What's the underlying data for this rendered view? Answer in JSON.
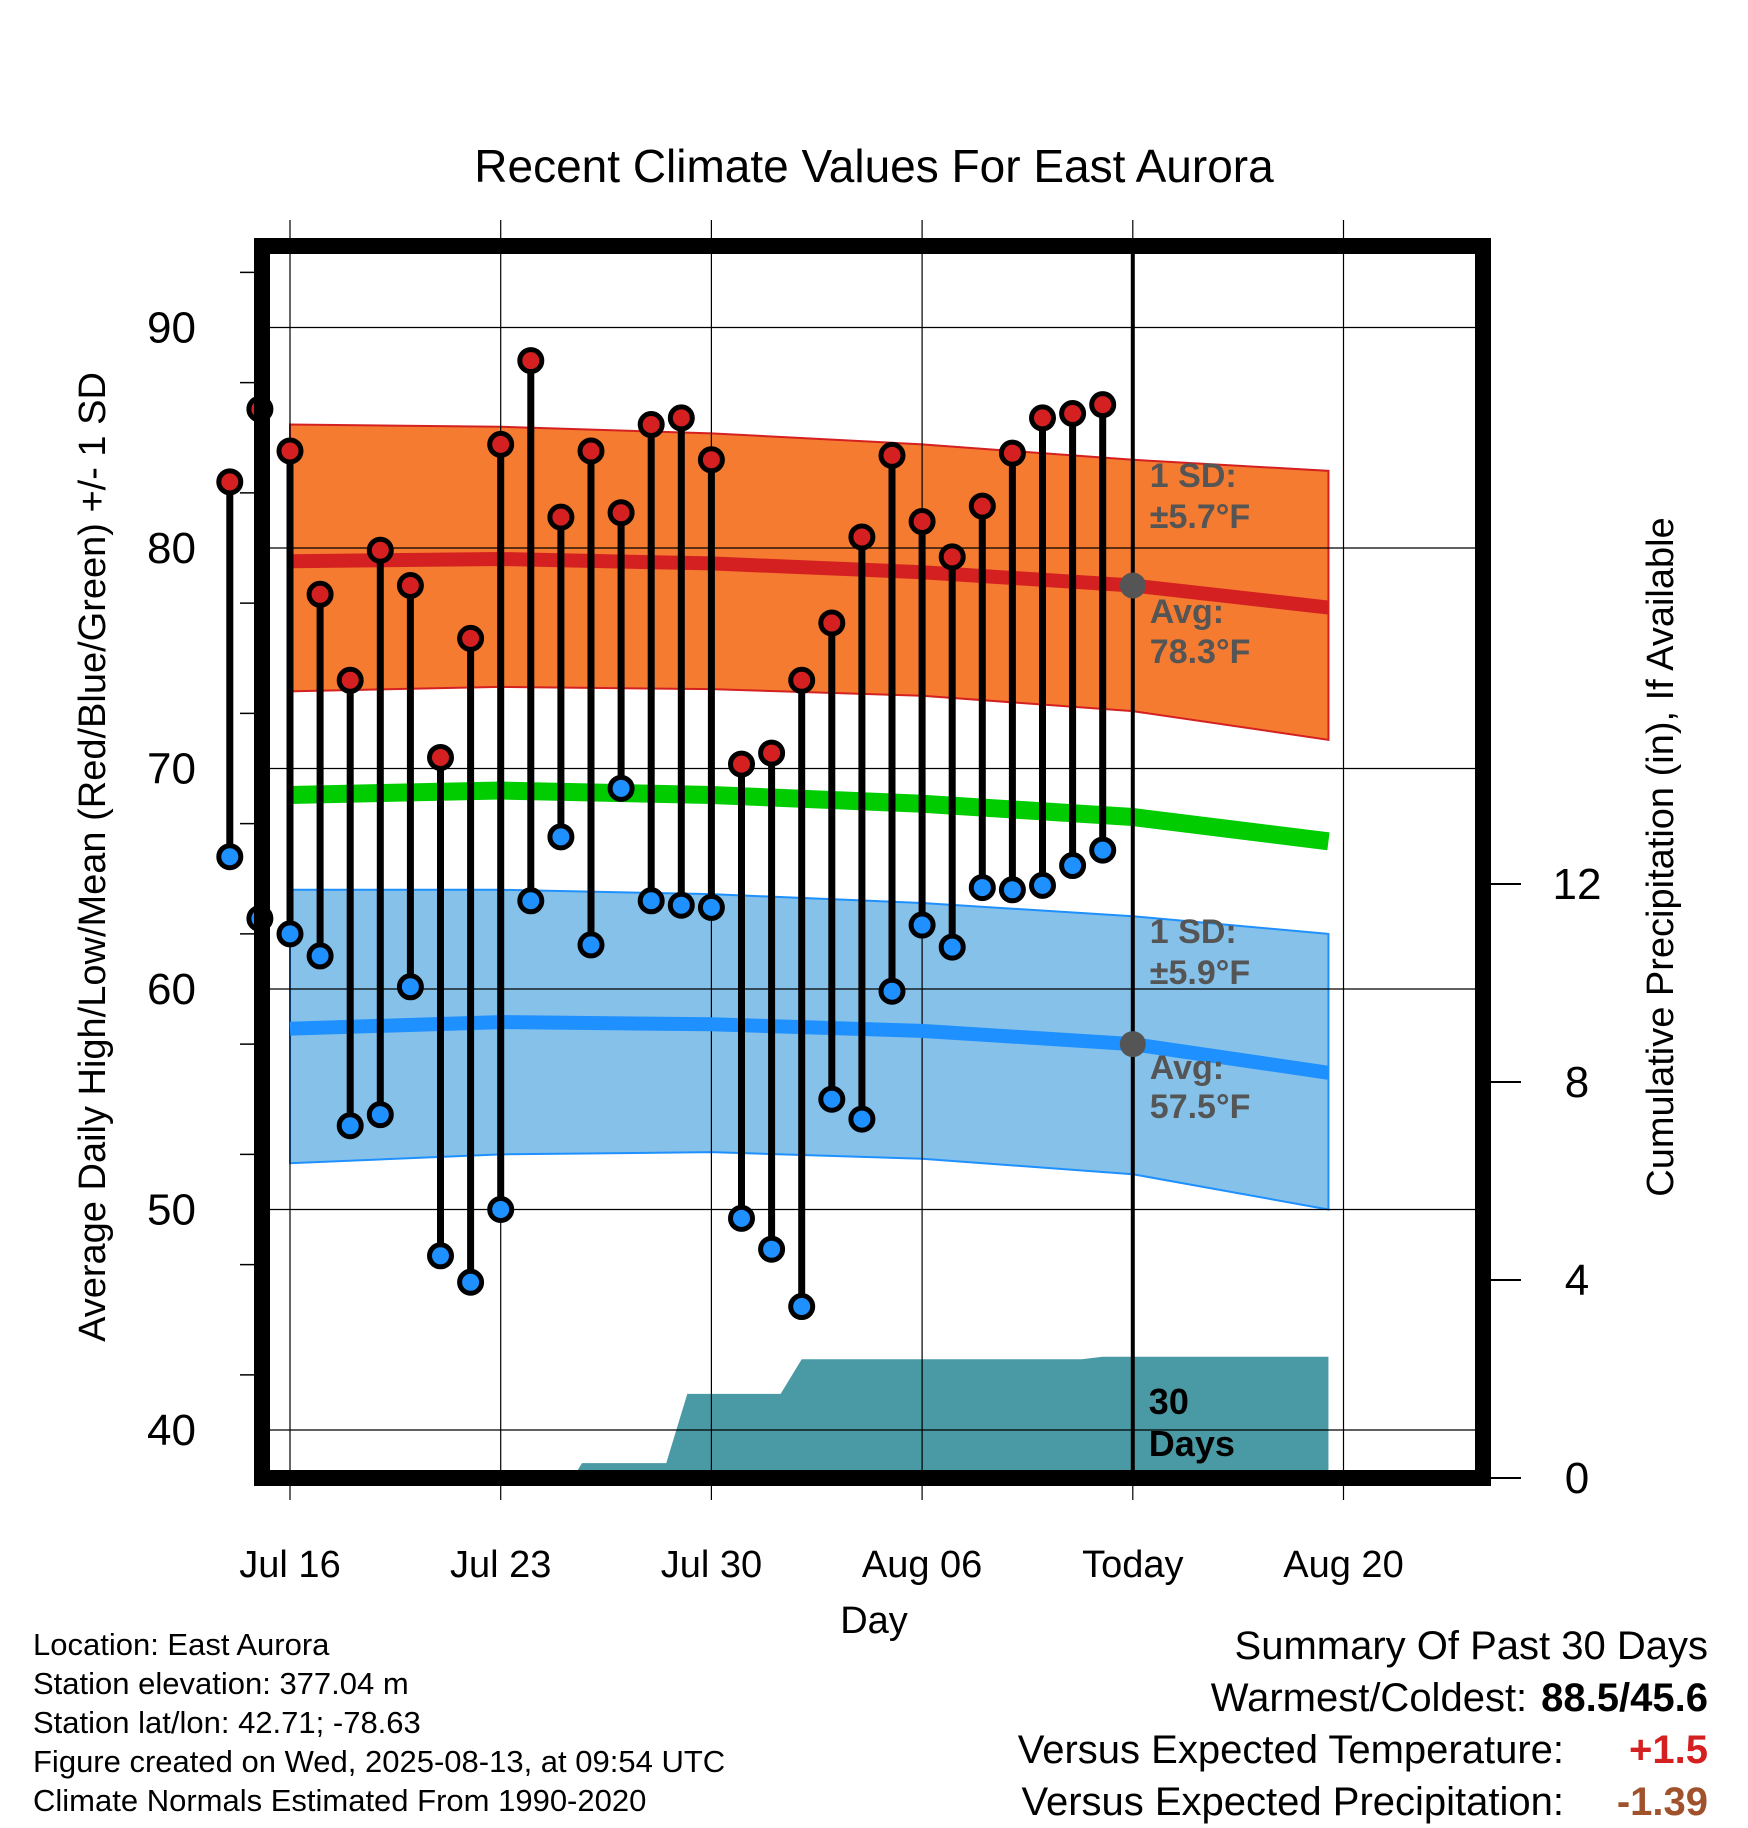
{
  "chart_data": {
    "type": "line",
    "title": "Recent Climate Values For East Aurora",
    "xlabel": "Day",
    "ylabel": "Average Daily High/Low/Mean (Red/Blue/Green) +/- 1 SD",
    "y2label": "Cumulative Precipitation (in), If Available",
    "ylim": [
      37.5,
      93
    ],
    "y_ticks": [
      40,
      50,
      60,
      70,
      80,
      90
    ],
    "y2lim": [
      0,
      18
    ],
    "y2_ticks": [
      0,
      4,
      8,
      12
    ],
    "x_ticks": [
      "Jul 16",
      "Jul 23",
      "Jul 30",
      "Aug 06",
      "Today",
      "Aug 20"
    ],
    "grid": true,
    "series": [
      {
        "name": "High",
        "color": "#d42020",
        "values": [
          83.0,
          86.3,
          84.4,
          77.9,
          74.0,
          79.9,
          78.3,
          70.5,
          75.9,
          84.7,
          88.5,
          81.4,
          84.4,
          81.6,
          85.6,
          85.9,
          84.0,
          70.2,
          70.7,
          74.0,
          76.6,
          80.5,
          84.2,
          81.2,
          79.6,
          81.9,
          84.3,
          85.9,
          86.1,
          86.5
        ]
      },
      {
        "name": "Low",
        "color": "#1e90ff",
        "values": [
          66.0,
          63.2,
          62.5,
          61.5,
          53.8,
          54.3,
          60.1,
          47.9,
          46.7,
          50.0,
          64.0,
          66.9,
          62.0,
          69.1,
          64.0,
          63.8,
          63.7,
          49.6,
          48.2,
          45.6,
          55.0,
          54.1,
          59.9,
          62.9,
          61.9,
          64.6,
          64.5,
          64.7,
          65.6,
          66.3
        ]
      },
      {
        "name": "Normal High",
        "color": "#d42020",
        "x": [
          0,
          7,
          14,
          21,
          28,
          34.5
        ],
        "values": [
          79.4,
          79.5,
          79.3,
          78.9,
          78.3,
          77.3
        ]
      },
      {
        "name": "Normal High +1 SD",
        "color": "#f47b30",
        "x": [
          0,
          7,
          14,
          21,
          28,
          34.5
        ],
        "values": [
          85.6,
          85.5,
          85.2,
          84.7,
          84.0,
          83.5
        ]
      },
      {
        "name": "Normal High -1 SD",
        "color": "#f47b30",
        "x": [
          0,
          7,
          14,
          21,
          28,
          34.5
        ],
        "values": [
          73.5,
          73.7,
          73.6,
          73.3,
          72.6,
          71.3
        ]
      },
      {
        "name": "Normal Mean",
        "color": "#00cc00",
        "x": [
          0,
          7,
          14,
          21,
          28,
          34.5
        ],
        "values": [
          68.8,
          69.0,
          68.8,
          68.4,
          67.8,
          66.7
        ]
      },
      {
        "name": "Normal Low",
        "color": "#1e90ff",
        "x": [
          0,
          7,
          14,
          21,
          28,
          34.5
        ],
        "values": [
          58.2,
          58.5,
          58.4,
          58.1,
          57.5,
          56.2
        ]
      },
      {
        "name": "Normal Low +1 SD",
        "color": "#85c1e9",
        "x": [
          0,
          7,
          14,
          21,
          28,
          34.5
        ],
        "values": [
          64.5,
          64.5,
          64.3,
          63.9,
          63.3,
          62.5
        ]
      },
      {
        "name": "Normal Low -1 SD",
        "color": "#85c1e9",
        "x": [
          0,
          7,
          14,
          21,
          28,
          34.5
        ],
        "values": [
          52.1,
          52.5,
          52.6,
          52.3,
          51.6,
          50.0
        ]
      },
      {
        "name": "Cumulative Precipitation",
        "color": "#4a9aa5",
        "axis": "y2",
        "x": [
          -0.5,
          8.7,
          9.5,
          9.7,
          12.5,
          13.2,
          16.3,
          17.0,
          17.8,
          26.3,
          27.0,
          34.5
        ],
        "values": [
          0,
          0,
          0.1,
          0.3,
          0.3,
          1.7,
          1.7,
          2.4,
          2.4,
          2.4,
          2.45,
          2.45
        ]
      }
    ],
    "annotations": {
      "high_sd": [
        "1 SD:",
        "±5.7°F"
      ],
      "high_avg": [
        "Avg:",
        "78.3°F"
      ],
      "low_sd": [
        "1 SD:",
        "±5.9°F"
      ],
      "low_avg": [
        "Avg:",
        "57.5°F"
      ],
      "window": [
        "30",
        "Days"
      ]
    }
  },
  "footer": {
    "location": "Location: East Aurora",
    "elevation": "Station elevation: 377.04 m",
    "latlon": "Station lat/lon: 42.71; -78.63",
    "created": "Figure created on Wed, 2025-08-13, at 09:54 UTC",
    "normals": "Climate Normals Estimated From 1990-2020"
  },
  "summary": {
    "title": "Summary Of Past 30 Days",
    "warmest_label": "Warmest/Coldest:",
    "warmest_value": "88.5/45.6",
    "temp_label": "Versus Expected Temperature:",
    "temp_value": "+1.5",
    "precip_label": "Versus Expected Precipitation:",
    "precip_value": "-1.39"
  }
}
